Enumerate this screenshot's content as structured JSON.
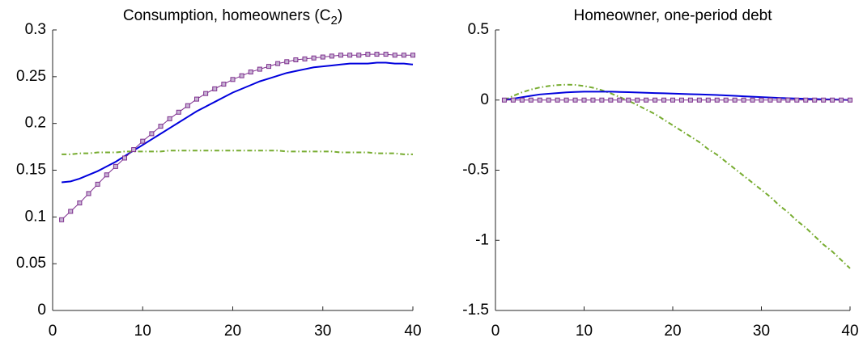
{
  "chart_data": [
    {
      "type": "line",
      "title": [
        "Consumption, homeowners  (C",
        "2",
        ")"
      ],
      "x": [
        1,
        2,
        3,
        4,
        5,
        6,
        7,
        8,
        9,
        10,
        11,
        12,
        13,
        14,
        15,
        16,
        17,
        18,
        19,
        20,
        21,
        22,
        23,
        24,
        25,
        26,
        27,
        28,
        29,
        30,
        31,
        32,
        33,
        34,
        35,
        36,
        37,
        38,
        39,
        40
      ],
      "xlim": [
        0,
        40
      ],
      "xticks": [
        0,
        10,
        20,
        30,
        40
      ],
      "ylim": [
        0,
        0.3
      ],
      "yticks": [
        0,
        0.05,
        0.1,
        0.15,
        0.2,
        0.25,
        0.3
      ],
      "series": [
        {
          "color": "#0000dd",
          "line_style": "-",
          "values": [
            0.137,
            0.138,
            0.141,
            0.145,
            0.149,
            0.154,
            0.159,
            0.165,
            0.171,
            0.177,
            0.183,
            0.189,
            0.195,
            0.201,
            0.207,
            0.213,
            0.218,
            0.223,
            0.228,
            0.233,
            0.237,
            0.241,
            0.245,
            0.248,
            0.251,
            0.254,
            0.256,
            0.258,
            0.26,
            0.261,
            0.262,
            0.263,
            0.264,
            0.264,
            0.264,
            0.265,
            0.265,
            0.264,
            0.264,
            0.263
          ]
        },
        {
          "color": "#77ac30",
          "line_style": "-.",
          "values": [
            0.167,
            0.167,
            0.168,
            0.168,
            0.169,
            0.169,
            0.169,
            0.17,
            0.17,
            0.17,
            0.17,
            0.17,
            0.171,
            0.171,
            0.171,
            0.171,
            0.171,
            0.171,
            0.171,
            0.171,
            0.171,
            0.171,
            0.171,
            0.171,
            0.171,
            0.17,
            0.17,
            0.17,
            0.17,
            0.17,
            0.17,
            0.169,
            0.169,
            0.169,
            0.169,
            0.168,
            0.168,
            0.168,
            0.167,
            0.167
          ]
        },
        {
          "color": "#7e2f8e",
          "line_style": "-",
          "marker": "s",
          "values": [
            0.097,
            0.106,
            0.115,
            0.125,
            0.135,
            0.145,
            0.154,
            0.163,
            0.172,
            0.181,
            0.189,
            0.197,
            0.205,
            0.212,
            0.219,
            0.226,
            0.232,
            0.237,
            0.242,
            0.247,
            0.251,
            0.255,
            0.258,
            0.261,
            0.264,
            0.266,
            0.268,
            0.269,
            0.27,
            0.271,
            0.272,
            0.273,
            0.273,
            0.273,
            0.274,
            0.274,
            0.274,
            0.273,
            0.273,
            0.273
          ]
        }
      ]
    },
    {
      "type": "line",
      "title": [
        "Homeowner, one-period debt"
      ],
      "x": [
        1,
        2,
        3,
        4,
        5,
        6,
        7,
        8,
        9,
        10,
        11,
        12,
        13,
        14,
        15,
        16,
        17,
        18,
        19,
        20,
        21,
        22,
        23,
        24,
        25,
        26,
        27,
        28,
        29,
        30,
        31,
        32,
        33,
        34,
        35,
        36,
        37,
        38,
        39,
        40
      ],
      "xlim": [
        0,
        40
      ],
      "xticks": [
        0,
        10,
        20,
        30,
        40
      ],
      "ylim": [
        -1.5,
        0.5
      ],
      "yticks": [
        -1.5,
        -1,
        -0.5,
        0,
        0.5
      ],
      "series": [
        {
          "color": "#77ac30",
          "line_style": "-.",
          "values": [
            0,
            0.03,
            0.055,
            0.075,
            0.09,
            0.1,
            0.107,
            0.11,
            0.108,
            0.1,
            0.088,
            0.07,
            0.048,
            0.022,
            -0.005,
            -0.035,
            -0.068,
            -0.1,
            -0.14,
            -0.18,
            -0.22,
            -0.26,
            -0.3,
            -0.35,
            -0.39,
            -0.44,
            -0.49,
            -0.54,
            -0.59,
            -0.64,
            -0.69,
            -0.75,
            -0.8,
            -0.86,
            -0.91,
            -0.97,
            -1.03,
            -1.08,
            -1.14,
            -1.2
          ]
        },
        {
          "color": "#0000dd",
          "line_style": "-",
          "values": [
            0,
            0.01,
            0.02,
            0.03,
            0.04,
            0.045,
            0.05,
            0.055,
            0.058,
            0.06,
            0.06,
            0.06,
            0.06,
            0.058,
            0.056,
            0.054,
            0.052,
            0.05,
            0.048,
            0.046,
            0.044,
            0.042,
            0.04,
            0.038,
            0.036,
            0.033,
            0.03,
            0.027,
            0.024,
            0.021,
            0.018,
            0.015,
            0.013,
            0.011,
            0.009,
            0.007,
            0.005,
            0.004,
            0.002,
            0
          ]
        },
        {
          "color": "#7e2f8e",
          "line_style": "-",
          "marker": "s",
          "values": [
            0,
            0,
            0,
            0,
            0,
            0,
            0,
            0,
            0,
            0,
            0,
            0,
            0,
            0,
            0,
            0,
            0,
            0,
            0,
            0,
            0,
            0,
            0,
            0,
            0,
            0,
            0,
            0,
            0,
            0,
            0,
            0,
            0,
            0,
            0,
            0,
            0,
            0,
            0,
            0
          ]
        }
      ]
    }
  ]
}
